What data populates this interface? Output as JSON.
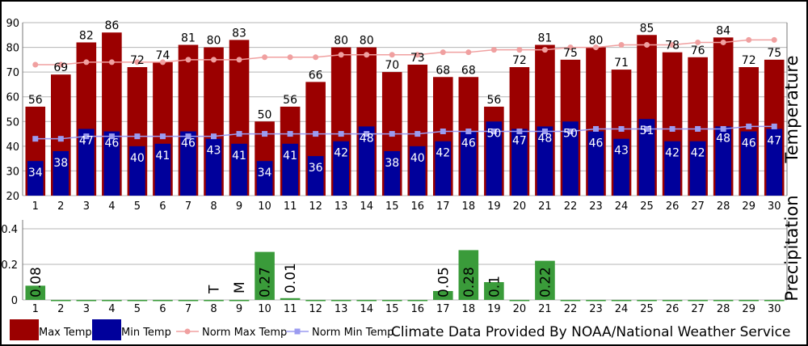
{
  "chart_data": [
    {
      "type": "bar",
      "ylabel": "Temperature",
      "ylim": [
        20,
        90
      ],
      "yticks": [
        20,
        30,
        40,
        50,
        60,
        70,
        80,
        90
      ],
      "grid": true,
      "categories": [
        "1",
        "2",
        "3",
        "4",
        "5",
        "6",
        "7",
        "8",
        "9",
        "10",
        "11",
        "12",
        "13",
        "14",
        "15",
        "16",
        "17",
        "18",
        "19",
        "20",
        "21",
        "22",
        "23",
        "24",
        "25",
        "26",
        "27",
        "28",
        "29",
        "30"
      ],
      "series": [
        {
          "name": "Max Temp",
          "kind": "bar",
          "color": "#9b0000",
          "values": [
            56,
            69,
            82,
            86,
            72,
            74,
            81,
            80,
            83,
            50,
            56,
            66,
            80,
            80,
            70,
            73,
            68,
            68,
            56,
            72,
            81,
            75,
            80,
            71,
            85,
            78,
            76,
            84,
            72,
            75
          ]
        },
        {
          "name": "Min Temp",
          "kind": "bar",
          "color": "#00009b",
          "values": [
            34,
            38,
            47,
            46,
            40,
            41,
            46,
            43,
            41,
            34,
            41,
            36,
            42,
            48,
            38,
            40,
            42,
            46,
            50,
            47,
            48,
            50,
            46,
            43,
            51,
            42,
            42,
            48,
            46,
            47
          ]
        },
        {
          "name": "Norm Max Temp",
          "kind": "line",
          "color": "#f0a0a0",
          "values": [
            73,
            73,
            74,
            74,
            74,
            74,
            75,
            75,
            75,
            76,
            76,
            76,
            77,
            77,
            77,
            77,
            78,
            78,
            79,
            79,
            79,
            80,
            80,
            81,
            81,
            81,
            82,
            82,
            83,
            83
          ]
        },
        {
          "name": "Norm Min Temp",
          "kind": "line",
          "color": "#9b9bf0",
          "values": [
            43,
            43,
            44,
            44,
            44,
            44,
            44,
            44,
            45,
            45,
            45,
            45,
            45,
            45,
            45,
            45,
            46,
            46,
            46,
            46,
            46,
            46,
            47,
            47,
            47,
            47,
            47,
            47,
            48,
            48
          ]
        }
      ]
    },
    {
      "type": "bar",
      "ylabel": "Precipitation",
      "ylim": [
        0,
        0.45
      ],
      "yticks": [
        "0",
        "0.2",
        "0.4"
      ],
      "grid": true,
      "categories": [
        "1",
        "2",
        "3",
        "4",
        "5",
        "6",
        "7",
        "8",
        "9",
        "10",
        "11",
        "12",
        "13",
        "14",
        "15",
        "16",
        "17",
        "18",
        "19",
        "20",
        "21",
        "22",
        "23",
        "24",
        "25",
        "26",
        "27",
        "28",
        "29",
        "30"
      ],
      "series": [
        {
          "name": "Precipitation",
          "kind": "bar",
          "color": "#3a9b3a",
          "values": [
            0.08,
            0,
            0,
            0,
            0,
            0,
            0,
            0,
            0,
            0.27,
            0.01,
            0,
            0,
            0,
            0,
            0,
            0.05,
            0.28,
            0.1,
            0,
            0.22,
            0,
            0,
            0,
            0,
            0,
            0,
            0,
            0,
            0
          ],
          "labels": [
            "0.08",
            "",
            "",
            "",
            "",
            "",
            "",
            "T",
            "M",
            "0.27",
            "0.01",
            "",
            "",
            "",
            "",
            "",
            "0.05",
            "0.28",
            "0.1",
            "",
            "0.22",
            "",
            "",
            "",
            "",
            "",
            "",
            "",
            "",
            ""
          ]
        }
      ]
    }
  ],
  "legend": {
    "items": [
      {
        "label": "Max Temp",
        "color": "#9b0000",
        "marker": "rect"
      },
      {
        "label": "Min Temp",
        "color": "#00009b",
        "marker": "rect"
      },
      {
        "label": "Norm Max Temp",
        "color": "#f0a0a0",
        "marker": "line"
      },
      {
        "label": "Norm Min Temp",
        "color": "#9b9bf0",
        "marker": "line-square"
      }
    ],
    "credit": "Climate Data Provided By NOAA/National Weather Service"
  }
}
